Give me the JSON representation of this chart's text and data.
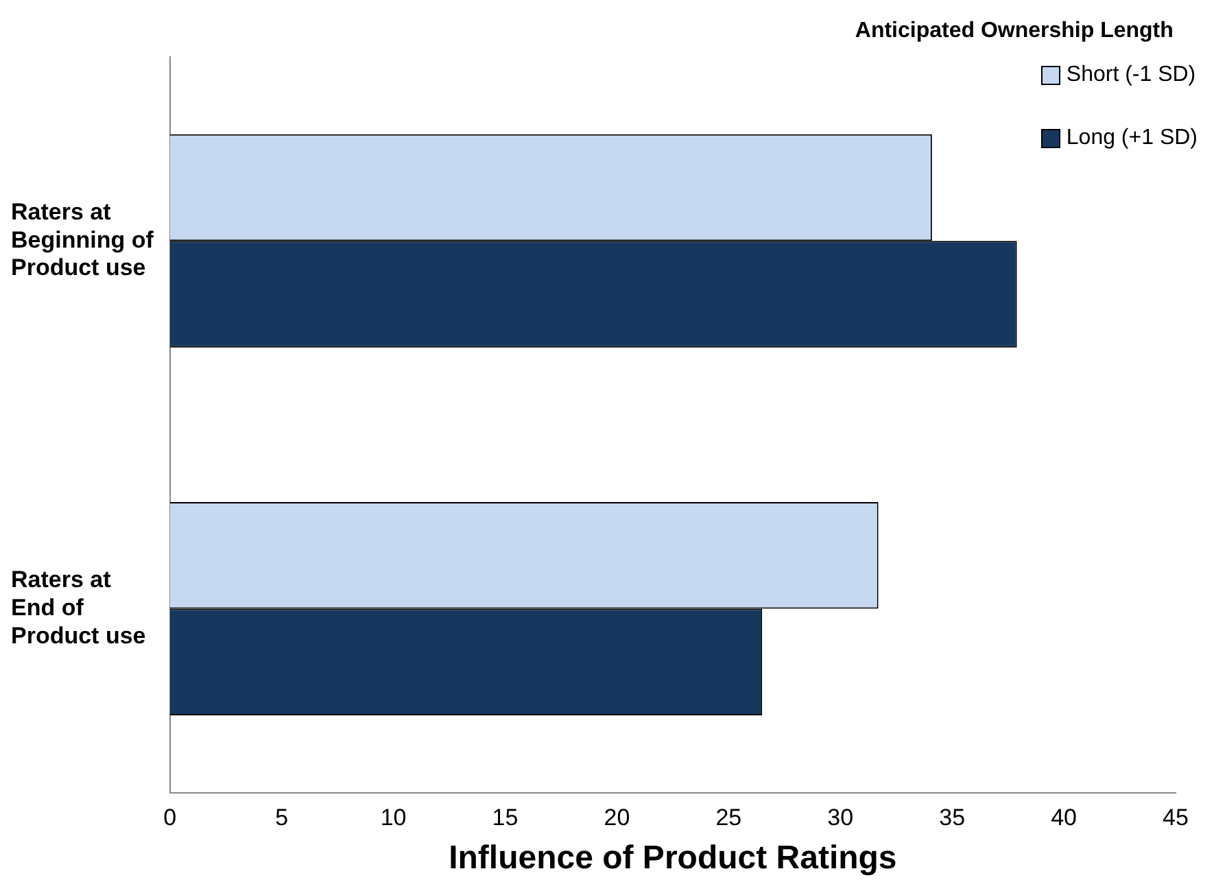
{
  "chart_data": {
    "type": "bar",
    "orientation": "horizontal",
    "xlabel": "Influence of Product Ratings",
    "legend_title": "Anticipated Ownership Length",
    "legend": "top right",
    "grid": false,
    "categories": [
      "Raters at Beginning of Product use",
      "Raters at End of Product use"
    ],
    "series": [
      {
        "name": "Short (-1 SD)",
        "color": "#c6d9f1",
        "values": [
          34.1,
          31.7
        ]
      },
      {
        "name": "Long (+1 SD)",
        "color": "#17375e",
        "values": [
          37.9,
          26.5
        ]
      }
    ],
    "xlim": [
      0,
      45
    ],
    "xticks": [
      0,
      5,
      10,
      15,
      20,
      25,
      30,
      35,
      40,
      45
    ]
  }
}
